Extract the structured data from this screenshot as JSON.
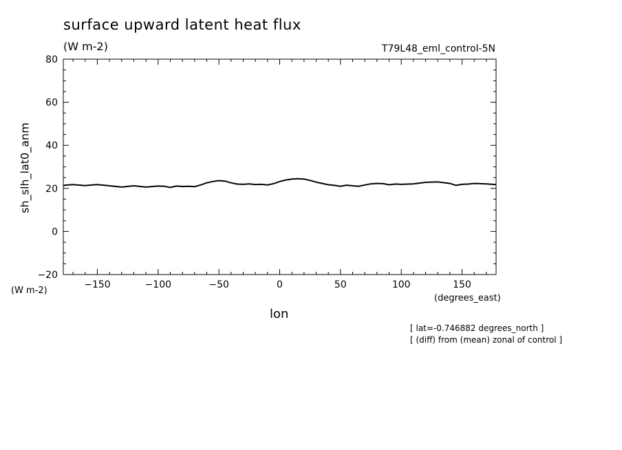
{
  "chart_data": {
    "type": "line",
    "title": "surface upward latent heat flux",
    "units": "(W m-2)",
    "run_label": "T79L48_eml_control-5N",
    "xlabel": "lon",
    "xunits": "(degrees_east)",
    "ylabel": "sh_slh_lat0_anm",
    "yunits": "(W m-2)",
    "xlim": [
      -178,
      178
    ],
    "ylim": [
      -20,
      80
    ],
    "xticks": [
      -150,
      -100,
      -50,
      0,
      50,
      100,
      150
    ],
    "yticks": [
      -20,
      0,
      20,
      40,
      60,
      80
    ],
    "notes": [
      "[ lat=-0.746882 degrees_north ]",
      "[ (diff) from (mean) zonal of control ]"
    ],
    "series": [
      {
        "x": [
          -178,
          -170,
          -160,
          -150,
          -140,
          -130,
          -120,
          -110,
          -100,
          -95,
          -90,
          -85,
          -80,
          -75,
          -70,
          -65,
          -60,
          -55,
          -50,
          -45,
          -40,
          -35,
          -30,
          -25,
          -20,
          -15,
          -10,
          -5,
          0,
          5,
          10,
          15,
          20,
          25,
          30,
          35,
          40,
          45,
          50,
          55,
          60,
          65,
          70,
          75,
          80,
          85,
          90,
          95,
          100,
          110,
          120,
          130,
          140,
          145,
          150,
          155,
          160,
          170,
          178
        ],
        "y": [
          21.4,
          21.8,
          21.3,
          21.8,
          21.2,
          20.6,
          21.2,
          20.6,
          21.1,
          21.0,
          20.4,
          21.1,
          20.9,
          21.0,
          20.8,
          21.6,
          22.6,
          23.2,
          23.6,
          23.4,
          22.6,
          22.0,
          21.9,
          22.1,
          21.8,
          21.9,
          21.6,
          22.2,
          23.2,
          23.9,
          24.3,
          24.5,
          24.3,
          23.7,
          22.9,
          22.3,
          21.7,
          21.4,
          21.0,
          21.5,
          21.2,
          21.0,
          21.6,
          22.1,
          22.3,
          22.2,
          21.7,
          22.0,
          21.9,
          22.1,
          22.8,
          23.0,
          22.3,
          21.4,
          21.9,
          22.0,
          22.3,
          22.1,
          21.8
        ]
      }
    ]
  }
}
